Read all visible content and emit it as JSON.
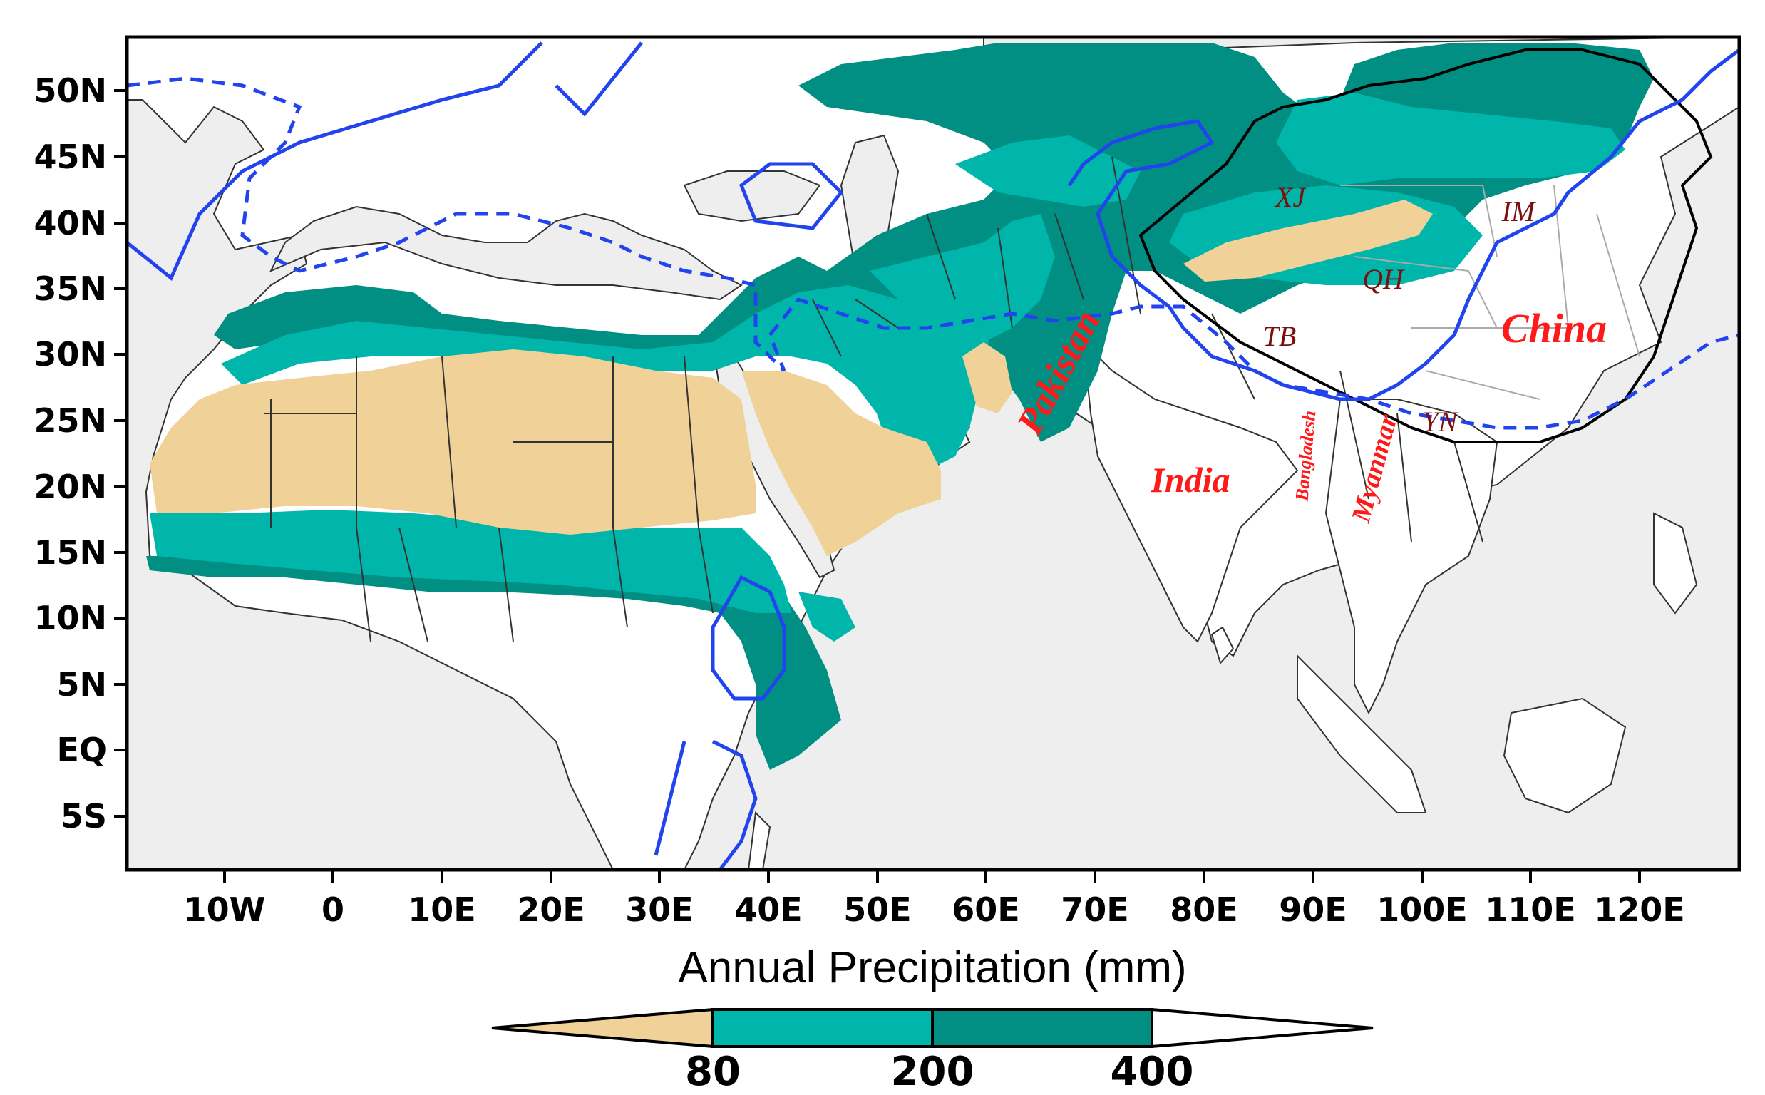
{
  "colors": {
    "ocean": "#eeeeee",
    "land": "#ffffff",
    "arid_lt80": "#f0d299",
    "semi_80_200": "#00b5aa",
    "semi_200_400": "#008f82",
    "contour": "#2244ee",
    "border": "#333333",
    "label_red": "#ff1a1a",
    "label_darkred": "#7a1010"
  },
  "axes": {
    "y_ticks": [
      "50N",
      "45N",
      "40N",
      "35N",
      "30N",
      "25N",
      "20N",
      "15N",
      "10N",
      "5N",
      "EQ",
      "5S"
    ],
    "x_ticks": [
      "10W",
      "0",
      "10E",
      "20E",
      "30E",
      "40E",
      "50E",
      "60E",
      "70E",
      "80E",
      "90E",
      "100E",
      "110E",
      "120E"
    ]
  },
  "caption": "Annual Precipitation (mm)",
  "colorbar": {
    "labels": [
      "80",
      "200",
      "400"
    ],
    "bins": [
      {
        "range": "< 80",
        "color": "#f0d299"
      },
      {
        "range": "80–200",
        "color": "#00b5aa"
      },
      {
        "range": "200–400",
        "color": "#008f82"
      },
      {
        "range": "> 400",
        "color": "#ffffff"
      }
    ]
  },
  "labels": {
    "countries": [
      "Pakistan",
      "India",
      "Bangladesh",
      "Myanmar",
      "China"
    ],
    "regions": [
      "XJ",
      "IM",
      "QH",
      "TB",
      "YN"
    ]
  }
}
